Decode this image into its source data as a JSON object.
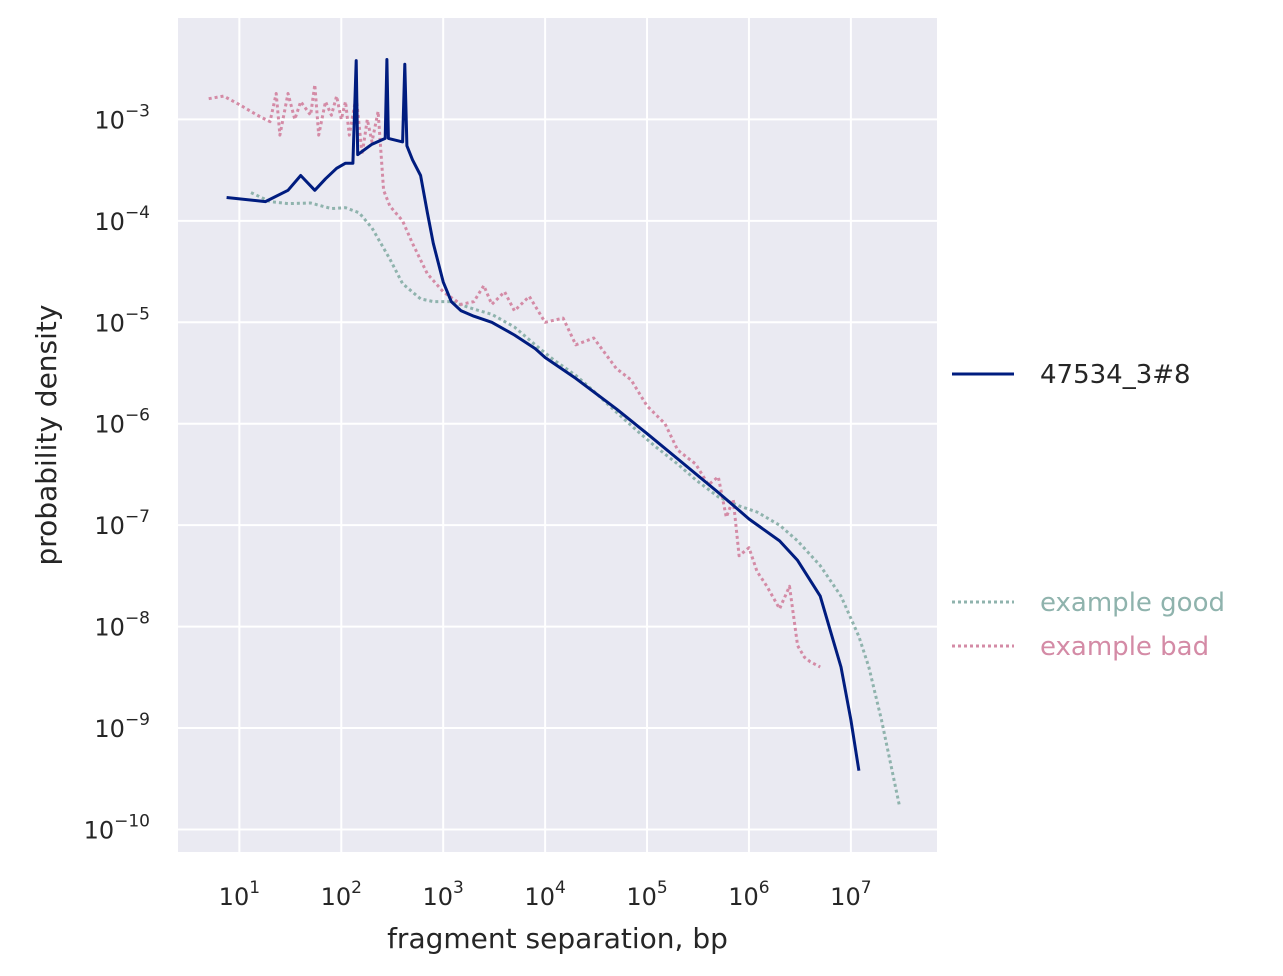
{
  "chart_data": {
    "type": "line",
    "title": "",
    "xlabel": "fragment separation, bp",
    "ylabel": "probability density",
    "xscale": "log",
    "yscale": "log",
    "xlim": [
      2.5,
      70000000
    ],
    "ylim": [
      6e-11,
      0.01
    ],
    "grid": true,
    "background": "#eaeaf2",
    "x_ticks": [
      {
        "base": "10",
        "exp": "1",
        "value": 10
      },
      {
        "base": "10",
        "exp": "2",
        "value": 100
      },
      {
        "base": "10",
        "exp": "3",
        "value": 1000
      },
      {
        "base": "10",
        "exp": "4",
        "value": 10000
      },
      {
        "base": "10",
        "exp": "5",
        "value": 100000
      },
      {
        "base": "10",
        "exp": "6",
        "value": 1000000
      },
      {
        "base": "10",
        "exp": "7",
        "value": 10000000
      }
    ],
    "y_ticks": [
      {
        "base": "10",
        "exp": "−3",
        "value": 0.001
      },
      {
        "base": "10",
        "exp": "−4",
        "value": 0.0001
      },
      {
        "base": "10",
        "exp": "−5",
        "value": 1e-05
      },
      {
        "base": "10",
        "exp": "−6",
        "value": 1e-06
      },
      {
        "base": "10",
        "exp": "−7",
        "value": 1e-07
      },
      {
        "base": "10",
        "exp": "−8",
        "value": 1e-08
      },
      {
        "base": "10",
        "exp": "−9",
        "value": 1e-09
      },
      {
        "base": "10",
        "exp": "−10",
        "value": 1e-10
      }
    ],
    "legend_placement": "right, outside plot",
    "series": [
      {
        "name": "example good",
        "color": "#8fb3ad",
        "style": "dotted",
        "points": [
          [
            13,
            0.00019
          ],
          [
            20,
            0.000155
          ],
          [
            30,
            0.000148
          ],
          [
            50,
            0.00015
          ],
          [
            80,
            0.000132
          ],
          [
            110,
            0.000135
          ],
          [
            150,
            0.00012
          ],
          [
            200,
            8.5e-05
          ],
          [
            300,
            4.2e-05
          ],
          [
            400,
            2.4e-05
          ],
          [
            600,
            1.7e-05
          ],
          [
            800,
            1.6e-05
          ],
          [
            1200,
            1.6e-05
          ],
          [
            2000,
            1.35e-05
          ],
          [
            3000,
            1.2e-05
          ],
          [
            5000,
            9e-06
          ],
          [
            8000,
            6e-06
          ],
          [
            12000,
            4.3e-06
          ],
          [
            20000,
            3e-06
          ],
          [
            30000,
            2.1e-06
          ],
          [
            50000,
            1.3e-06
          ],
          [
            80000,
            8.5e-07
          ],
          [
            120000,
            6e-07
          ],
          [
            200000,
            4e-07
          ],
          [
            300000,
            2.8e-07
          ],
          [
            500000,
            1.9e-07
          ],
          [
            800000,
            1.55e-07
          ],
          [
            1200000,
            1.35e-07
          ],
          [
            2000000,
            1e-07
          ],
          [
            3000000,
            7e-08
          ],
          [
            5000000,
            4e-08
          ],
          [
            8000000,
            2e-08
          ],
          [
            12000000,
            8e-09
          ],
          [
            15000000,
            4e-09
          ],
          [
            20000000,
            1.2e-09
          ],
          [
            30000000,
            1.7e-10
          ]
        ]
      },
      {
        "name": "example bad",
        "color": "#d48ba6",
        "style": "dotted",
        "points": [
          [
            5,
            0.0016
          ],
          [
            7,
            0.0017
          ],
          [
            10,
            0.0014
          ],
          [
            15,
            0.0011
          ],
          [
            20,
            0.00095
          ],
          [
            23,
            0.0018
          ],
          [
            25,
            0.0007
          ],
          [
            30,
            0.0018
          ],
          [
            35,
            0.001
          ],
          [
            40,
            0.0015
          ],
          [
            50,
            0.0011
          ],
          [
            55,
            0.0022
          ],
          [
            60,
            0.0007
          ],
          [
            70,
            0.0015
          ],
          [
            80,
            0.0011
          ],
          [
            90,
            0.0017
          ],
          [
            100,
            0.001
          ],
          [
            110,
            0.0015
          ],
          [
            120,
            0.0007
          ],
          [
            140,
            0.0017
          ],
          [
            160,
            0.00045
          ],
          [
            180,
            0.001
          ],
          [
            200,
            0.0006
          ],
          [
            230,
            0.0012
          ],
          [
            260,
            0.0002
          ],
          [
            300,
            0.00014
          ],
          [
            400,
            0.0001
          ],
          [
            500,
            6e-05
          ],
          [
            700,
            3e-05
          ],
          [
            1000,
            2e-05
          ],
          [
            1500,
            1.5e-05
          ],
          [
            2000,
            1.6e-05
          ],
          [
            2500,
            2.3e-05
          ],
          [
            3000,
            1.5e-05
          ],
          [
            4000,
            2e-05
          ],
          [
            5000,
            1.3e-05
          ],
          [
            7000,
            1.8e-05
          ],
          [
            10000,
            1e-05
          ],
          [
            15000,
            1.1e-05
          ],
          [
            20000,
            6e-06
          ],
          [
            30000,
            7e-06
          ],
          [
            50000,
            3.5e-06
          ],
          [
            70000,
            2.7e-06
          ],
          [
            100000,
            1.5e-06
          ],
          [
            150000,
            1e-06
          ],
          [
            200000,
            5.5e-07
          ],
          [
            300000,
            4e-07
          ],
          [
            400000,
            2.5e-07
          ],
          [
            500000,
            3e-07
          ],
          [
            600000,
            1.2e-07
          ],
          [
            700000,
            1.8e-07
          ],
          [
            800000,
            5e-08
          ],
          [
            1000000,
            6e-08
          ],
          [
            1200000,
            3.5e-08
          ],
          [
            1500000,
            2.5e-08
          ],
          [
            2000000,
            1.5e-08
          ],
          [
            2500000,
            2.5e-08
          ],
          [
            3000000,
            6.5e-09
          ],
          [
            3500000,
            5e-09
          ],
          [
            4000000,
            4.5e-09
          ],
          [
            5000000,
            4e-09
          ]
        ]
      },
      {
        "name": "47534_3#8",
        "color": "#001c7f",
        "style": "solid",
        "points": [
          [
            7.5,
            0.00017
          ],
          [
            18,
            0.000155
          ],
          [
            30,
            0.0002
          ],
          [
            40,
            0.00028
          ],
          [
            55,
            0.0002
          ],
          [
            70,
            0.00026
          ],
          [
            90,
            0.00033
          ],
          [
            110,
            0.00037
          ],
          [
            130,
            0.00037
          ],
          [
            140,
            0.0038
          ],
          [
            145,
            0.00045
          ],
          [
            200,
            0.00057
          ],
          [
            270,
            0.00065
          ],
          [
            280,
            0.0039
          ],
          [
            290,
            0.00065
          ],
          [
            400,
            0.0006
          ],
          [
            420,
            0.0035
          ],
          [
            440,
            0.00055
          ],
          [
            500,
            0.0004
          ],
          [
            600,
            0.00028
          ],
          [
            700,
            0.00012
          ],
          [
            800,
            6e-05
          ],
          [
            1000,
            2.5e-05
          ],
          [
            1200,
            1.6e-05
          ],
          [
            1500,
            1.3e-05
          ],
          [
            2000,
            1.15e-05
          ],
          [
            3000,
            1e-05
          ],
          [
            5000,
            7.5e-06
          ],
          [
            8000,
            5.5e-06
          ],
          [
            10000,
            4.5e-06
          ],
          [
            20000,
            2.8e-06
          ],
          [
            50000,
            1.4e-06
          ],
          [
            100000,
            8e-07
          ],
          [
            200000,
            4.5e-07
          ],
          [
            500000,
            2.1e-07
          ],
          [
            800000,
            1.4e-07
          ],
          [
            1000000,
            1.15e-07
          ],
          [
            2000000,
            7e-08
          ],
          [
            3000000,
            4.5e-08
          ],
          [
            5000000,
            2e-08
          ],
          [
            8000000,
            4e-09
          ],
          [
            10000000,
            1.2e-09
          ],
          [
            12000000,
            3.8e-10
          ]
        ]
      }
    ],
    "legend": {
      "groups": [
        {
          "items": [
            {
              "label": "47534_3#8",
              "color": "#001c7f",
              "style": "solid"
            }
          ]
        },
        {
          "items": [
            {
              "label": "example good",
              "color": "#8fb3ad",
              "style": "dotted"
            },
            {
              "label": "example bad",
              "color": "#d48ba6",
              "style": "dotted"
            }
          ]
        }
      ]
    }
  }
}
